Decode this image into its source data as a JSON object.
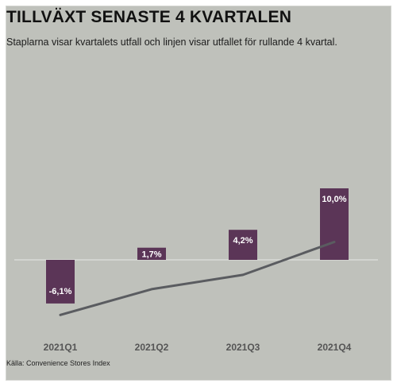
{
  "header": {
    "title": "TILLVÄXT SENASTE 4 KVARTALEN",
    "subtitle": "Staplarna visar kvartalets utfall och linjen visar utfallet för rullande 4 kvartal."
  },
  "footer": {
    "source": "Källa: Convenience Stores Index"
  },
  "colors": {
    "background": "#bfc1bb",
    "bar": "#5b3557",
    "line": "#5a5c60",
    "zero_line": "#e6e6e4"
  },
  "chart_data": {
    "type": "bar",
    "categories": [
      "2021Q1",
      "2021Q2",
      "2021Q3",
      "2021Q4"
    ],
    "series": [
      {
        "type": "bar",
        "values": [
          -6.1,
          1.7,
          4.2,
          10.0
        ],
        "labels": [
          "-6,1%",
          "1,7%",
          "4,2%",
          "10,0%"
        ]
      },
      {
        "type": "line",
        "values": [
          -7.7,
          -4.1,
          -2.1,
          2.5
        ]
      }
    ],
    "ylim": [
      -9,
      11
    ],
    "grid": false,
    "legend": "none"
  }
}
